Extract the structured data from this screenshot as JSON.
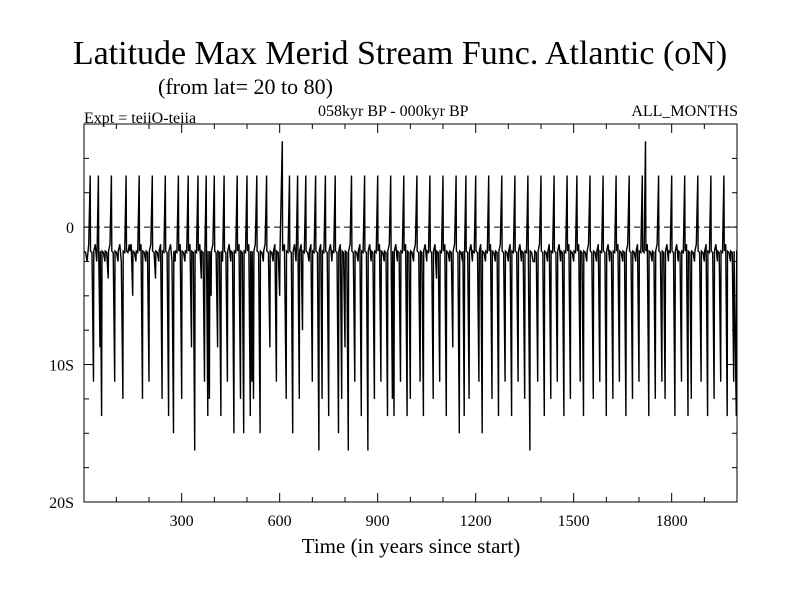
{
  "header": {
    "title": "Latitude Max Merid Stream Func. Atlantic (oN)",
    "subtitle": "(from lat= 20 to 80)",
    "experiment": "Expt = teiiO-teiia",
    "period": "058kyr BP - 000kyr BP",
    "months": "ALL_MONTHS"
  },
  "chart_data": {
    "type": "line",
    "title": "Latitude Max Merid Stream Func. Atlantic (oN)",
    "subtitle": "(from lat= 20 to 80)",
    "xlabel": "Time (in years since start)",
    "ylabel": "",
    "xlim": [
      1,
      2000
    ],
    "ylim": [
      -20,
      7.5
    ],
    "x_ticks": [
      300,
      600,
      900,
      1200,
      1500,
      1800
    ],
    "x_tick_labels": [
      "300",
      "600",
      "900",
      "1200",
      "1500",
      "1800"
    ],
    "y_ticks": [
      0,
      -10,
      -20
    ],
    "y_tick_labels": [
      "0",
      "10S",
      "20S"
    ],
    "zero_line": "dashed",
    "grid": false,
    "series": [
      {
        "description": "annual latitude of max meridional stream function",
        "baseline": -1.75,
        "spike_values": [
          [
            20,
            3.75
          ],
          [
            30,
            -11.25
          ],
          [
            40,
            -2.5
          ],
          [
            45,
            3.75
          ],
          [
            50,
            -8.75
          ],
          [
            55,
            -13.75
          ],
          [
            65,
            -2.5
          ],
          [
            75,
            -3.75
          ],
          [
            85,
            3.75
          ],
          [
            95,
            -11.25
          ],
          [
            105,
            -2.5
          ],
          [
            120,
            -12.5
          ],
          [
            130,
            3.75
          ],
          [
            140,
            -1.25
          ],
          [
            150,
            -5
          ],
          [
            160,
            -2.5
          ],
          [
            170,
            3.75
          ],
          [
            180,
            -12.5
          ],
          [
            190,
            -2.5
          ],
          [
            200,
            -11.25
          ],
          [
            210,
            3.75
          ],
          [
            220,
            -3.75
          ],
          [
            230,
            -2.5
          ],
          [
            240,
            -12.5
          ],
          [
            250,
            3.75
          ],
          [
            260,
            -13.75
          ],
          [
            275,
            -15
          ],
          [
            280,
            -2.5
          ],
          [
            290,
            3.75
          ],
          [
            300,
            -12.5
          ],
          [
            310,
            -2.5
          ],
          [
            320,
            3.75
          ],
          [
            330,
            -8.75
          ],
          [
            340,
            -16.25
          ],
          [
            350,
            3.75
          ],
          [
            360,
            -3.75
          ],
          [
            370,
            -11.25
          ],
          [
            375,
            3.75
          ],
          [
            380,
            -13.75
          ],
          [
            385,
            -12.5
          ],
          [
            390,
            -5
          ],
          [
            400,
            3.75
          ],
          [
            410,
            -8.75
          ],
          [
            420,
            -13.75
          ],
          [
            425,
            -2.5
          ],
          [
            430,
            3.75
          ],
          [
            440,
            -11.25
          ],
          [
            450,
            -2.5
          ],
          [
            460,
            -15
          ],
          [
            470,
            3.75
          ],
          [
            480,
            -12.5
          ],
          [
            490,
            -15
          ],
          [
            500,
            3.75
          ],
          [
            510,
            -13.75
          ],
          [
            515,
            -11.25
          ],
          [
            520,
            -12.5
          ],
          [
            530,
            3.75
          ],
          [
            540,
            -15
          ],
          [
            550,
            -2.5
          ],
          [
            560,
            3.75
          ],
          [
            570,
            -8.75
          ],
          [
            580,
            -2.5
          ],
          [
            590,
            -11.25
          ],
          [
            600,
            -5
          ],
          [
            608,
            6.25
          ],
          [
            620,
            -12.5
          ],
          [
            630,
            3.75
          ],
          [
            640,
            -15
          ],
          [
            650,
            -2.5
          ],
          [
            655,
            3.75
          ],
          [
            660,
            -12.5
          ],
          [
            670,
            -7.5
          ],
          [
            680,
            3.75
          ],
          [
            690,
            -2.5
          ],
          [
            700,
            -11.25
          ],
          [
            710,
            3.75
          ],
          [
            720,
            -16.25
          ],
          [
            730,
            -12.5
          ],
          [
            740,
            3.75
          ],
          [
            750,
            -13.75
          ],
          [
            760,
            -2.5
          ],
          [
            770,
            3.75
          ],
          [
            780,
            -15
          ],
          [
            790,
            -12.5
          ],
          [
            800,
            -8.75
          ],
          [
            810,
            -16.25
          ],
          [
            820,
            3.75
          ],
          [
            830,
            -11.25
          ],
          [
            840,
            -2.5
          ],
          [
            850,
            -13.75
          ],
          [
            860,
            3.75
          ],
          [
            870,
            -16.25
          ],
          [
            880,
            -2.5
          ],
          [
            890,
            -12.5
          ],
          [
            900,
            3.75
          ],
          [
            910,
            -11.25
          ],
          [
            920,
            -2.5
          ],
          [
            930,
            -13.75
          ],
          [
            940,
            3.75
          ],
          [
            945,
            -12.5
          ],
          [
            950,
            -13.75
          ],
          [
            960,
            -2.5
          ],
          [
            970,
            -11.25
          ],
          [
            980,
            3.75
          ],
          [
            990,
            -13.75
          ],
          [
            1000,
            -12.5
          ],
          [
            1010,
            -2.5
          ],
          [
            1020,
            3.75
          ],
          [
            1030,
            -11.25
          ],
          [
            1040,
            -13.75
          ],
          [
            1050,
            -2.5
          ],
          [
            1060,
            3.75
          ],
          [
            1070,
            -12.5
          ],
          [
            1080,
            -3.75
          ],
          [
            1090,
            -11.25
          ],
          [
            1100,
            3.75
          ],
          [
            1110,
            -13.75
          ],
          [
            1120,
            -2.5
          ],
          [
            1130,
            -8.75
          ],
          [
            1140,
            3.75
          ],
          [
            1150,
            -15
          ],
          [
            1160,
            -2.5
          ],
          [
            1165,
            -13.75
          ],
          [
            1170,
            3.75
          ],
          [
            1180,
            -12.5
          ],
          [
            1190,
            -2.5
          ],
          [
            1200,
            3.75
          ],
          [
            1210,
            -11.25
          ],
          [
            1220,
            -15
          ],
          [
            1230,
            -2.5
          ],
          [
            1240,
            3.75
          ],
          [
            1250,
            -12.5
          ],
          [
            1260,
            -2.5
          ],
          [
            1270,
            -13.75
          ],
          [
            1280,
            3.75
          ],
          [
            1290,
            -11.25
          ],
          [
            1300,
            -2.5
          ],
          [
            1310,
            -13.75
          ],
          [
            1320,
            3.75
          ],
          [
            1330,
            -11.25
          ],
          [
            1340,
            -2.5
          ],
          [
            1350,
            -12.5
          ],
          [
            1360,
            3.75
          ],
          [
            1366,
            -16.25
          ],
          [
            1380,
            -2.5
          ],
          [
            1390,
            -11.25
          ],
          [
            1400,
            3.75
          ],
          [
            1410,
            -13.75
          ],
          [
            1420,
            -2.5
          ],
          [
            1430,
            -12.5
          ],
          [
            1440,
            3.75
          ],
          [
            1450,
            -11.25
          ],
          [
            1460,
            -2.5
          ],
          [
            1470,
            -13.75
          ],
          [
            1480,
            3.75
          ],
          [
            1490,
            -12.5
          ],
          [
            1500,
            -2.5
          ],
          [
            1510,
            3.75
          ],
          [
            1520,
            -11.25
          ],
          [
            1530,
            -13.75
          ],
          [
            1540,
            -2.5
          ],
          [
            1550,
            3.75
          ],
          [
            1560,
            -12.5
          ],
          [
            1570,
            -2.5
          ],
          [
            1580,
            -11.25
          ],
          [
            1590,
            3.75
          ],
          [
            1600,
            -13.75
          ],
          [
            1610,
            -2.5
          ],
          [
            1620,
            -12.5
          ],
          [
            1630,
            3.75
          ],
          [
            1640,
            -11.25
          ],
          [
            1650,
            -2.5
          ],
          [
            1660,
            -13.75
          ],
          [
            1670,
            3.75
          ],
          [
            1680,
            -12.5
          ],
          [
            1690,
            -2.5
          ],
          [
            1700,
            -11.25
          ],
          [
            1710,
            3.75
          ],
          [
            1720,
            6.25
          ],
          [
            1730,
            -13.75
          ],
          [
            1740,
            -2.5
          ],
          [
            1750,
            -12.5
          ],
          [
            1760,
            3.75
          ],
          [
            1770,
            -11.25
          ],
          [
            1780,
            -12.5
          ],
          [
            1790,
            -2.5
          ],
          [
            1800,
            3.75
          ],
          [
            1810,
            -13.75
          ],
          [
            1820,
            -2.5
          ],
          [
            1830,
            -11.25
          ],
          [
            1840,
            3.75
          ],
          [
            1850,
            -13.75
          ],
          [
            1860,
            -12.5
          ],
          [
            1870,
            -2.5
          ],
          [
            1880,
            3.75
          ],
          [
            1890,
            -11.25
          ],
          [
            1900,
            -2.5
          ],
          [
            1910,
            -13.75
          ],
          [
            1920,
            3.75
          ],
          [
            1930,
            -12.5
          ],
          [
            1940,
            -2.5
          ],
          [
            1950,
            -11.25
          ],
          [
            1960,
            3.75
          ],
          [
            1970,
            -13.75
          ],
          [
            1980,
            -2.5
          ],
          [
            1990,
            -11.25
          ],
          [
            1998,
            -13.75
          ]
        ]
      }
    ]
  }
}
